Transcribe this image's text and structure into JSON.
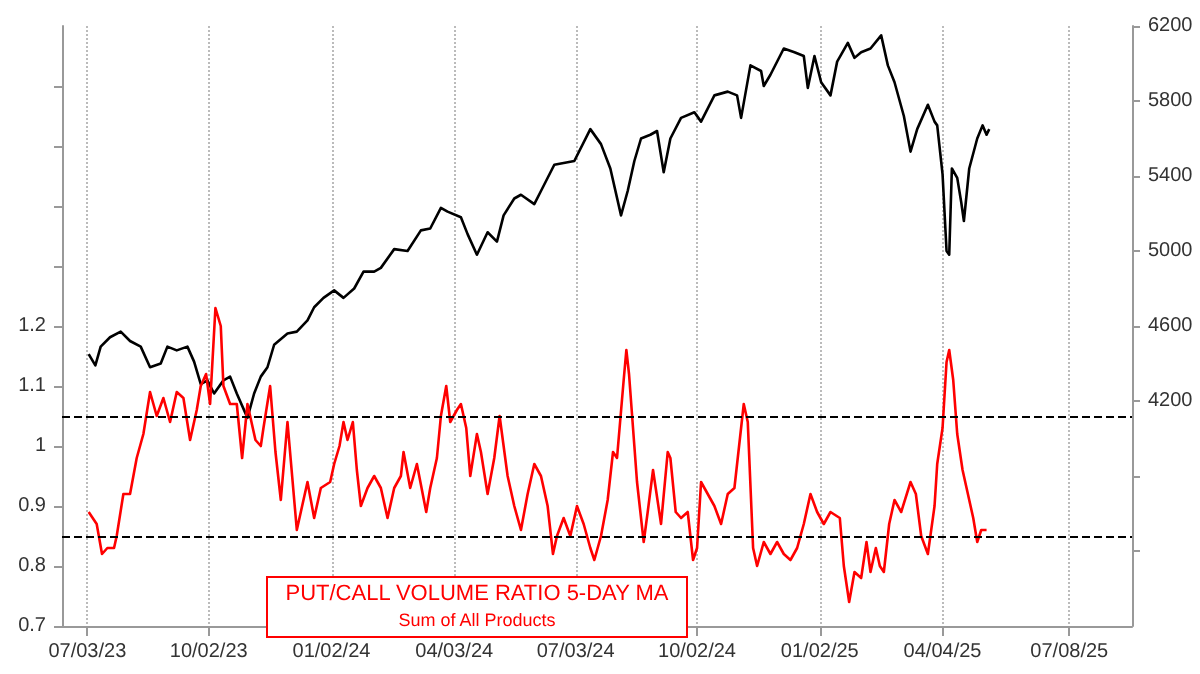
{
  "chart_data": {
    "type": "line",
    "annotations": [
      "Sum of All Products"
    ],
    "xlim": [
      "2023-06-14",
      "2025-08-24"
    ],
    "xticks": [
      {
        "value": "2023-07-03",
        "label": "07/03/23"
      },
      {
        "value": "2023-10-02",
        "label": "10/02/23"
      },
      {
        "value": "2024-01-02",
        "label": "01/02/24"
      },
      {
        "value": "2024-04-03",
        "label": "04/03/24"
      },
      {
        "value": "2024-07-03",
        "label": "07/03/24"
      },
      {
        "value": "2024-10-02",
        "label": "10/02/24"
      },
      {
        "value": "2025-01-02",
        "label": "01/02/25"
      },
      {
        "value": "2025-04-04",
        "label": "04/04/25"
      },
      {
        "value": "2025-07-08",
        "label": "07/08/25"
      }
    ],
    "ylim": [
      0.7,
      1.7
    ],
    "yticks": [
      0.7,
      0.8,
      0.9,
      1,
      1.1,
      1.2,
      {
        "value": 1.3,
        "label": null
      },
      {
        "value": 1.4,
        "label": null
      },
      {
        "value": 1.5,
        "label": null
      },
      {
        "value": 1.6,
        "label": null
      }
    ],
    "y2lim": [
      3000,
      6200
    ],
    "y2ticks": [
      {
        "value": 3400,
        "label": null
      },
      {
        "value": 3800,
        "label": null
      },
      4200,
      4600,
      5000,
      5400,
      5800,
      6200
    ],
    "grid": "x",
    "marker": "none",
    "line_style": "solid",
    "ref_lines": [
      {
        "axis": "y",
        "value": 1.05,
        "color": "#000000",
        "line_style": "dashed"
      },
      {
        "axis": "y",
        "value": 0.85,
        "color": "#000000",
        "line_style": "dashed"
      }
    ],
    "series": [
      {
        "color": "#000000",
        "axis": "y2",
        "x": [
          "2023-07-04",
          "2023-07-09",
          "2023-07-13",
          "2023-07-20",
          "2023-07-28",
          "2023-08-04",
          "2023-08-12",
          "2023-08-19",
          "2023-08-27",
          "2023-09-01",
          "2023-09-08",
          "2023-09-16",
          "2023-09-21",
          "2023-09-26",
          "2023-10-01",
          "2023-10-06",
          "2023-10-13",
          "2023-10-18",
          "2023-10-23",
          "2023-10-31",
          "2023-11-05",
          "2023-11-10",
          "2023-11-15",
          "2023-11-20",
          "2023-11-30",
          "2023-12-07",
          "2023-12-15",
          "2023-12-20",
          "2023-12-27",
          "2024-01-04",
          "2024-01-11",
          "2024-01-19",
          "2024-01-26",
          "2024-02-03",
          "2024-02-08",
          "2024-02-18",
          "2024-02-28",
          "2024-03-09",
          "2024-03-16",
          "2024-03-24",
          "2024-03-29",
          "2024-04-08",
          "2024-04-13",
          "2024-04-20",
          "2024-04-28",
          "2024-05-05",
          "2024-05-10",
          "2024-05-18",
          "2024-05-23",
          "2024-06-02",
          "2024-06-07",
          "2024-06-17",
          "2024-07-02",
          "2024-07-14",
          "2024-07-22",
          "2024-07-29",
          "2024-08-06",
          "2024-08-11",
          "2024-08-16",
          "2024-08-21",
          "2024-08-28",
          "2024-09-02",
          "2024-09-07",
          "2024-09-12",
          "2024-09-20",
          "2024-09-30",
          "2024-10-05",
          "2024-10-15",
          "2024-10-25",
          "2024-11-01",
          "2024-11-04",
          "2024-11-11",
          "2024-11-19",
          "2024-11-21",
          "2024-11-26",
          "2024-12-06",
          "2024-12-14",
          "2024-12-21",
          "2024-12-24",
          "2024-12-29",
          "2025-01-03",
          "2025-01-10",
          "2025-01-15",
          "2025-01-23",
          "2025-01-28",
          "2025-02-02",
          "2025-02-09",
          "2025-02-17",
          "2025-02-22",
          "2025-02-27",
          "2025-03-06",
          "2025-03-11",
          "2025-03-16",
          "2025-03-24",
          "2025-03-29",
          "2025-03-31",
          "2025-04-04",
          "2025-04-07",
          "2025-04-09",
          "2025-04-11",
          "2025-04-15",
          "2025-04-18",
          "2025-04-20",
          "2025-04-24",
          "2025-04-30",
          "2025-05-04",
          "2025-05-07",
          "2025-05-09"
        ],
        "values": [
          4450,
          4390,
          4490,
          4540,
          4570,
          4520,
          4490,
          4380,
          4400,
          4490,
          4470,
          4490,
          4410,
          4290,
          4310,
          4240,
          4310,
          4330,
          4240,
          4110,
          4240,
          4330,
          4380,
          4500,
          4560,
          4570,
          4630,
          4700,
          4750,
          4790,
          4750,
          4800,
          4890,
          4890,
          4910,
          5010,
          5000,
          5110,
          5120,
          5230,
          5210,
          5180,
          5090,
          4980,
          5100,
          5050,
          5190,
          5280,
          5300,
          5250,
          5320,
          5460,
          5480,
          5650,
          5570,
          5440,
          5190,
          5320,
          5480,
          5600,
          5620,
          5640,
          5420,
          5600,
          5710,
          5740,
          5690,
          5830,
          5850,
          5830,
          5710,
          5990,
          5960,
          5880,
          5940,
          6080,
          6060,
          6040,
          5870,
          6040,
          5900,
          5830,
          6010,
          6110,
          6030,
          6060,
          6080,
          6150,
          5990,
          5900,
          5720,
          5530,
          5650,
          5780,
          5690,
          5670,
          5410,
          5000,
          4980,
          5440,
          5390,
          5260,
          5160,
          5440,
          5600,
          5670,
          5620,
          5650
        ]
      },
      {
        "name": "PUT/CALL VOLUME RATIO 5-DAY MA",
        "color": "#ff0000",
        "axis": "y",
        "x": [
          "2023-07-04",
          "2023-07-10",
          "2023-07-14",
          "2023-07-18",
          "2023-07-23",
          "2023-07-25",
          "2023-07-30",
          "2023-08-04",
          "2023-08-09",
          "2023-08-14",
          "2023-08-19",
          "2023-08-24",
          "2023-08-29",
          "2023-09-03",
          "2023-09-08",
          "2023-09-13",
          "2023-09-18",
          "2023-09-23",
          "2023-09-26",
          "2023-09-30",
          "2023-10-03",
          "2023-10-07",
          "2023-10-11",
          "2023-10-13",
          "2023-10-18",
          "2023-10-23",
          "2023-10-27",
          "2023-10-31",
          "2023-11-06",
          "2023-11-10",
          "2023-11-12",
          "2023-11-17",
          "2023-11-21",
          "2023-11-25",
          "2023-11-30",
          "2023-12-07",
          "2023-12-15",
          "2023-12-20",
          "2023-12-25",
          "2024-01-01",
          "2024-01-04",
          "2024-01-08",
          "2024-01-11",
          "2024-01-14",
          "2024-01-18",
          "2024-01-21",
          "2024-01-24",
          "2024-01-29",
          "2024-02-03",
          "2024-02-08",
          "2024-02-13",
          "2024-02-18",
          "2024-02-23",
          "2024-02-25",
          "2024-03-01",
          "2024-03-06",
          "2024-03-13",
          "2024-03-16",
          "2024-03-21",
          "2024-03-24",
          "2024-03-28",
          "2024-03-31",
          "2024-04-05",
          "2024-04-08",
          "2024-04-12",
          "2024-04-15",
          "2024-04-20",
          "2024-04-23",
          "2024-04-28",
          "2024-05-03",
          "2024-05-07",
          "2024-05-13",
          "2024-05-18",
          "2024-05-23",
          "2024-05-28",
          "2024-06-02",
          "2024-06-07",
          "2024-06-12",
          "2024-06-16",
          "2024-06-19",
          "2024-06-24",
          "2024-06-29",
          "2024-07-04",
          "2024-07-09",
          "2024-07-14",
          "2024-07-17",
          "2024-07-22",
          "2024-07-27",
          "2024-07-31",
          "2024-08-03",
          "2024-08-08",
          "2024-08-10",
          "2024-08-12",
          "2024-08-16",
          "2024-08-18",
          "2024-08-23",
          "2024-08-26",
          "2024-08-30",
          "2024-09-01",
          "2024-09-05",
          "2024-09-10",
          "2024-09-12",
          "2024-09-16",
          "2024-09-20",
          "2024-09-25",
          "2024-09-29",
          "2024-10-02",
          "2024-10-05",
          "2024-10-10",
          "2024-10-15",
          "2024-10-20",
          "2024-10-25",
          "2024-10-30",
          "2024-11-06",
          "2024-11-09",
          "2024-11-13",
          "2024-11-16",
          "2024-11-21",
          "2024-11-26",
          "2024-12-01",
          "2024-12-06",
          "2024-12-11",
          "2024-12-16",
          "2024-12-21",
          "2024-12-26",
          "2024-12-31",
          "2025-01-05",
          "2025-01-10",
          "2025-01-17",
          "2025-01-20",
          "2025-01-24",
          "2025-01-28",
          "2025-02-02",
          "2025-02-06",
          "2025-02-09",
          "2025-02-13",
          "2025-02-16",
          "2025-02-19",
          "2025-02-23",
          "2025-02-27",
          "2025-03-04",
          "2025-03-11",
          "2025-03-15",
          "2025-03-19",
          "2025-03-24",
          "2025-03-29",
          "2025-03-31",
          "2025-04-04",
          "2025-04-07",
          "2025-04-09",
          "2025-04-12",
          "2025-04-15",
          "2025-04-19",
          "2025-04-22",
          "2025-04-27",
          "2025-04-30",
          "2025-05-03",
          "2025-05-07"
        ],
        "values": [
          0.89,
          0.87,
          0.82,
          0.83,
          0.83,
          0.85,
          0.92,
          0.92,
          0.98,
          1.02,
          1.09,
          1.05,
          1.08,
          1.04,
          1.09,
          1.08,
          1.01,
          1.06,
          1.1,
          1.12,
          1.07,
          1.23,
          1.2,
          1.1,
          1.07,
          1.07,
          0.98,
          1.07,
          1.01,
          1.0,
          1.03,
          1.1,
          0.99,
          0.91,
          1.04,
          0.86,
          0.94,
          0.88,
          0.93,
          0.94,
          0.97,
          1.0,
          1.04,
          1.01,
          1.04,
          0.96,
          0.9,
          0.93,
          0.95,
          0.93,
          0.88,
          0.93,
          0.95,
          0.99,
          0.93,
          0.97,
          0.89,
          0.93,
          0.98,
          1.05,
          1.1,
          1.04,
          1.06,
          1.07,
          1.03,
          0.95,
          1.02,
          0.99,
          0.92,
          0.98,
          1.05,
          0.95,
          0.9,
          0.86,
          0.92,
          0.97,
          0.95,
          0.9,
          0.82,
          0.85,
          0.88,
          0.85,
          0.9,
          0.87,
          0.83,
          0.81,
          0.85,
          0.91,
          0.99,
          0.98,
          1.11,
          1.16,
          1.12,
          1.0,
          0.94,
          0.84,
          0.89,
          0.96,
          0.93,
          0.87,
          0.99,
          0.98,
          0.89,
          0.88,
          0.89,
          0.81,
          0.83,
          0.94,
          0.92,
          0.9,
          0.87,
          0.92,
          0.93,
          1.07,
          1.04,
          0.83,
          0.8,
          0.84,
          0.82,
          0.84,
          0.82,
          0.81,
          0.83,
          0.87,
          0.92,
          0.89,
          0.87,
          0.89,
          0.88,
          0.8,
          0.74,
          0.79,
          0.78,
          0.84,
          0.79,
          0.83,
          0.8,
          0.79,
          0.87,
          0.91,
          0.89,
          0.94,
          0.92,
          0.85,
          0.82,
          0.9,
          0.97,
          1.03,
          1.14,
          1.16,
          1.11,
          1.02,
          0.96,
          0.93,
          0.88,
          0.84,
          0.86,
          0.86
        ]
      }
    ]
  }
}
